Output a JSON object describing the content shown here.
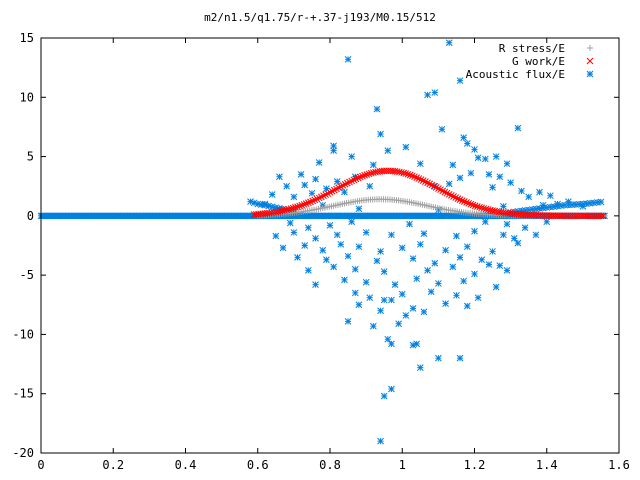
{
  "chart_data": {
    "type": "scatter",
    "title": "m2/n1.5/q1.75/r-+.37-j193/M0.15/512",
    "xlabel": "",
    "ylabel": "",
    "xlim": [
      0,
      1.6
    ],
    "ylim": [
      -20,
      15
    ],
    "x_ticks": [
      0,
      0.2,
      0.4,
      0.6,
      0.8,
      1,
      1.2,
      1.4,
      1.6
    ],
    "y_ticks": [
      -20,
      -15,
      -10,
      -5,
      0,
      5,
      10,
      15
    ],
    "x_tick_labels": [
      "0",
      "0.2",
      "0.4",
      "0.6",
      "0.8",
      "1",
      "1.2",
      "1.4",
      "1.6"
    ],
    "y_tick_labels": [
      "-20",
      "-15",
      "-10",
      "-5",
      "0",
      "5",
      "10",
      "15"
    ],
    "grid": false,
    "legend_position": "top-right",
    "colors": {
      "r_stress": "#a0a0a0",
      "g_work": "#ff0000",
      "acoustic_flux": "#0080e0"
    },
    "series": [
      {
        "name": "R stress/E",
        "marker": "plus",
        "color": "#a0a0a0",
        "x_range": [
          0.6,
          1.56
        ],
        "profile": "gaussian",
        "peak_x": 0.94,
        "peak_y": 1.4,
        "width": 0.13
      },
      {
        "name": "G work/E",
        "marker": "cross",
        "color": "#ff0000",
        "x_range": [
          0.59,
          1.56
        ],
        "profile": "gaussian",
        "peak_x": 0.96,
        "peak_y": 3.8,
        "width": 0.14
      },
      {
        "name": "Acoustic flux/E",
        "marker": "asterisk",
        "color": "#0080e0",
        "baseline": {
          "x_range": [
            0,
            1.56
          ],
          "y": 0
        },
        "outer_band": [
          [
            0.58,
            1.2
          ],
          [
            0.6,
            1.0
          ],
          [
            0.62,
            0.9
          ],
          [
            0.65,
            0.7
          ],
          [
            0.68,
            0.5
          ],
          [
            0.71,
            0.3
          ],
          [
            1.3,
            0.3
          ],
          [
            1.35,
            0.5
          ],
          [
            1.4,
            0.7
          ],
          [
            1.45,
            0.9
          ],
          [
            1.5,
            1.0
          ],
          [
            1.53,
            1.1
          ],
          [
            1.56,
            1.2
          ]
        ],
        "scatter_points": [
          [
            0.85,
            13.2
          ],
          [
            1.13,
            14.6
          ],
          [
            1.16,
            11.4
          ],
          [
            0.93,
            9.0
          ],
          [
            1.07,
            10.2
          ],
          [
            1.09,
            10.4
          ],
          [
            0.94,
            6.9
          ],
          [
            1.11,
            7.3
          ],
          [
            1.32,
            7.4
          ],
          [
            0.81,
            5.9
          ],
          [
            0.81,
            5.5
          ],
          [
            0.86,
            5.0
          ],
          [
            0.96,
            5.5
          ],
          [
            1.01,
            5.8
          ],
          [
            1.17,
            6.6
          ],
          [
            1.18,
            6.1
          ],
          [
            1.2,
            5.6
          ],
          [
            1.23,
            4.8
          ],
          [
            1.26,
            5.0
          ],
          [
            1.29,
            4.4
          ],
          [
            0.77,
            4.5
          ],
          [
            0.92,
            4.3
          ],
          [
            1.05,
            4.4
          ],
          [
            1.14,
            4.3
          ],
          [
            1.21,
            4.9
          ],
          [
            0.66,
            3.3
          ],
          [
            0.72,
            3.5
          ],
          [
            0.76,
            3.1
          ],
          [
            0.82,
            2.9
          ],
          [
            0.87,
            3.3
          ],
          [
            1.16,
            3.2
          ],
          [
            1.19,
            3.6
          ],
          [
            1.24,
            3.5
          ],
          [
            1.27,
            3.3
          ],
          [
            1.3,
            2.8
          ],
          [
            0.68,
            2.5
          ],
          [
            0.73,
            2.6
          ],
          [
            0.79,
            2.3
          ],
          [
            0.91,
            2.5
          ],
          [
            1.09,
            2.5
          ],
          [
            1.13,
            2.7
          ],
          [
            1.25,
            2.4
          ],
          [
            1.33,
            2.1
          ],
          [
            1.38,
            2.0
          ],
          [
            1.41,
            1.7
          ],
          [
            0.64,
            1.8
          ],
          [
            0.7,
            1.6
          ],
          [
            0.75,
            1.9
          ],
          [
            0.84,
            2.0
          ],
          [
            1.35,
            1.6
          ],
          [
            0.62,
            1.0
          ],
          [
            0.66,
            0.6
          ],
          [
            0.78,
            0.9
          ],
          [
            0.88,
            0.6
          ],
          [
            1.1,
            0.5
          ],
          [
            1.28,
            0.8
          ],
          [
            1.39,
            0.9
          ],
          [
            1.43,
            1.0
          ],
          [
            1.46,
            1.2
          ],
          [
            1.5,
            0.8
          ],
          [
            0.69,
            -0.6
          ],
          [
            0.74,
            -1.0
          ],
          [
            0.8,
            -0.8
          ],
          [
            0.86,
            -0.5
          ],
          [
            1.02,
            -0.7
          ],
          [
            1.23,
            -0.5
          ],
          [
            1.29,
            -0.7
          ],
          [
            1.34,
            -1.0
          ],
          [
            1.4,
            -0.5
          ],
          [
            0.65,
            -1.7
          ],
          [
            0.7,
            -1.4
          ],
          [
            0.76,
            -1.9
          ],
          [
            0.82,
            -1.6
          ],
          [
            0.9,
            -1.4
          ],
          [
            0.97,
            -1.6
          ],
          [
            1.06,
            -1.5
          ],
          [
            1.15,
            -1.7
          ],
          [
            1.2,
            -1.3
          ],
          [
            1.28,
            -1.6
          ],
          [
            1.31,
            -1.9
          ],
          [
            1.37,
            -1.6
          ],
          [
            0.67,
            -2.7
          ],
          [
            0.73,
            -2.5
          ],
          [
            0.78,
            -2.9
          ],
          [
            0.83,
            -2.4
          ],
          [
            0.88,
            -2.6
          ],
          [
            0.94,
            -3.0
          ],
          [
            1.0,
            -2.7
          ],
          [
            1.05,
            -2.4
          ],
          [
            1.12,
            -2.9
          ],
          [
            1.18,
            -2.6
          ],
          [
            1.25,
            -3.0
          ],
          [
            1.32,
            -2.3
          ],
          [
            0.71,
            -3.5
          ],
          [
            0.79,
            -3.7
          ],
          [
            0.85,
            -3.4
          ],
          [
            0.93,
            -3.8
          ],
          [
            1.03,
            -3.6
          ],
          [
            1.09,
            -4.0
          ],
          [
            1.16,
            -3.5
          ],
          [
            1.22,
            -3.7
          ],
          [
            1.27,
            -4.2
          ],
          [
            0.74,
            -4.6
          ],
          [
            0.81,
            -4.3
          ],
          [
            0.87,
            -4.5
          ],
          [
            0.95,
            -4.7
          ],
          [
            1.07,
            -4.6
          ],
          [
            1.14,
            -4.3
          ],
          [
            1.2,
            -4.9
          ],
          [
            1.24,
            -4.1
          ],
          [
            1.29,
            -4.6
          ],
          [
            0.76,
            -5.8
          ],
          [
            0.84,
            -5.4
          ],
          [
            0.9,
            -5.6
          ],
          [
            0.98,
            -5.8
          ],
          [
            1.04,
            -5.3
          ],
          [
            1.1,
            -5.7
          ],
          [
            1.17,
            -5.5
          ],
          [
            1.26,
            -6.0
          ],
          [
            0.87,
            -6.5
          ],
          [
            0.91,
            -6.9
          ],
          [
            1.0,
            -6.6
          ],
          [
            1.08,
            -6.4
          ],
          [
            1.15,
            -6.7
          ],
          [
            1.21,
            -6.9
          ],
          [
            0.88,
            -7.5
          ],
          [
            0.95,
            -7.1
          ],
          [
            0.97,
            -7.1
          ],
          [
            1.03,
            -7.8
          ],
          [
            1.12,
            -7.4
          ],
          [
            1.18,
            -7.6
          ],
          [
            0.94,
            -8.0
          ],
          [
            1.01,
            -8.4
          ],
          [
            1.06,
            -8.1
          ],
          [
            0.85,
            -8.9
          ],
          [
            0.92,
            -9.3
          ],
          [
            0.99,
            -9.1
          ],
          [
            0.96,
            -10.4
          ],
          [
            0.97,
            -10.8
          ],
          [
            1.03,
            -10.9
          ],
          [
            1.04,
            -10.8
          ],
          [
            1.1,
            -12.0
          ],
          [
            1.05,
            -12.8
          ],
          [
            1.16,
            -12.0
          ],
          [
            0.97,
            -14.6
          ],
          [
            0.95,
            -15.2
          ],
          [
            0.94,
            -19.0
          ]
        ]
      }
    ]
  }
}
